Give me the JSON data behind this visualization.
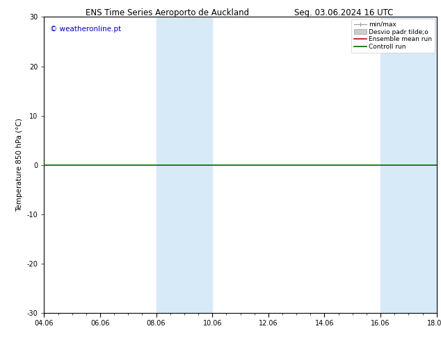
{
  "title_left": "ENS Time Series Aeroporto de Auckland",
  "title_right": "Seg. 03.06.2024 16 UTC",
  "ylabel": "Temperature 850 hPa (°C)",
  "ylim": [
    -30,
    30
  ],
  "yticks": [
    -30,
    -20,
    -10,
    0,
    10,
    20,
    30
  ],
  "xticks": [
    0,
    2,
    4,
    6,
    8,
    10,
    12,
    14
  ],
  "x_labels": [
    "04.06",
    "06.06",
    "08.06",
    "10.06",
    "12.06",
    "14.06",
    "16.06",
    "18.06"
  ],
  "shaded_bands": [
    {
      "x_start": 4,
      "x_end": 6
    },
    {
      "x_start": 12,
      "x_end": 14
    }
  ],
  "shaded_color": "#d6eaf8",
  "control_run_y": 0.0,
  "control_run_color": "#006400",
  "ensemble_mean_color": "#cc0000",
  "minmax_color": "#999999",
  "stddev_color": "#cccccc",
  "watermark_text": "© weatheronline.pt",
  "watermark_color": "#0000dd",
  "background_color": "#ffffff",
  "legend_labels": [
    "min/max",
    "Desvio padr tilde;o",
    "Ensemble mean run",
    "Controll run"
  ],
  "legend_colors": [
    "#999999",
    "#cccccc",
    "#cc0000",
    "#006400"
  ],
  "title_fontsize": 8.5,
  "axis_fontsize": 7.5,
  "tick_fontsize": 7.0,
  "legend_fontsize": 6.5
}
